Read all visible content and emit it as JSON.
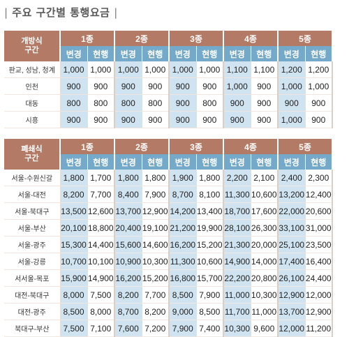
{
  "title": "주요 구간별 통행요금",
  "title_bar": "|",
  "grades": [
    "1종",
    "2종",
    "3종",
    "4종",
    "5종"
  ],
  "sub_new": "변경",
  "sub_old": "현행",
  "table1": {
    "corner_line1": "개방식",
    "corner_line2": "구간",
    "rows": [
      {
        "label": "판교, 성남, 청계",
        "values": [
          "1,000",
          "1,000",
          "1,000",
          "1,000",
          "1,000",
          "1,000",
          "1,100",
          "1,100",
          "1,200",
          "1,200"
        ]
      },
      {
        "label": "인천",
        "values": [
          "900",
          "900",
          "900",
          "900",
          "900",
          "900",
          "1,000",
          "900",
          "1,000",
          "1,000"
        ]
      },
      {
        "label": "대동",
        "values": [
          "800",
          "800",
          "800",
          "800",
          "900",
          "800",
          "900",
          "900",
          "900",
          "900"
        ]
      },
      {
        "label": "시흥",
        "values": [
          "900",
          "900",
          "900",
          "900",
          "900",
          "900",
          "900",
          "900",
          "1,000",
          "900"
        ]
      }
    ]
  },
  "table2": {
    "corner_line1": "폐쇄식",
    "corner_line2": "구간",
    "rows": [
      {
        "label": "서울-수원신갈",
        "values": [
          "1,800",
          "1,700",
          "1,800",
          "1,800",
          "1,900",
          "1,800",
          "2,200",
          "2,100",
          "2,400",
          "2,300"
        ]
      },
      {
        "label": "서울-대전",
        "values": [
          "8,200",
          "7,700",
          "8,400",
          "7,900",
          "8,700",
          "8,100",
          "11,300",
          "10,600",
          "13,200",
          "12,400"
        ]
      },
      {
        "label": "서울-북대구",
        "values": [
          "13,500",
          "12,600",
          "13,700",
          "12,900",
          "14,200",
          "13,400",
          "18,700",
          "17,600",
          "22,000",
          "20,600"
        ]
      },
      {
        "label": "서울-부산",
        "values": [
          "20,100",
          "18,800",
          "20,400",
          "19,100",
          "21,200",
          "19,900",
          "28,100",
          "26,300",
          "33,100",
          "31,000"
        ]
      },
      {
        "label": "서울-광주",
        "values": [
          "15,300",
          "14,400",
          "15,600",
          "14,600",
          "16,200",
          "15,200",
          "21,300",
          "20,000",
          "25,100",
          "23,500"
        ]
      },
      {
        "label": "서울-강릉",
        "values": [
          "10,700",
          "10,100",
          "10,900",
          "10,300",
          "11,300",
          "10,600",
          "14,900",
          "14,000",
          "17,400",
          "16,400"
        ]
      },
      {
        "label": "서서울-목포",
        "values": [
          "15,900",
          "14,900",
          "16,200",
          "15,200",
          "16,800",
          "15,700",
          "22,200",
          "20,800",
          "26,100",
          "24,400"
        ]
      },
      {
        "label": "대전-북대구",
        "values": [
          "8,000",
          "7,500",
          "8,200",
          "7,700",
          "8,500",
          "7,900",
          "11,000",
          "10,300",
          "12,900",
          "12,000"
        ]
      },
      {
        "label": "대전-광주",
        "values": [
          "8,500",
          "8,000",
          "8,700",
          "8,200",
          "9,000",
          "8,500",
          "11,700",
          "11,000",
          "13,700",
          "12,900"
        ]
      },
      {
        "label": "북대구-부산",
        "values": [
          "7,500",
          "7,100",
          "7,600",
          "7,200",
          "7,900",
          "7,400",
          "10,300",
          "9,600",
          "12,000",
          "11,200"
        ]
      }
    ]
  }
}
